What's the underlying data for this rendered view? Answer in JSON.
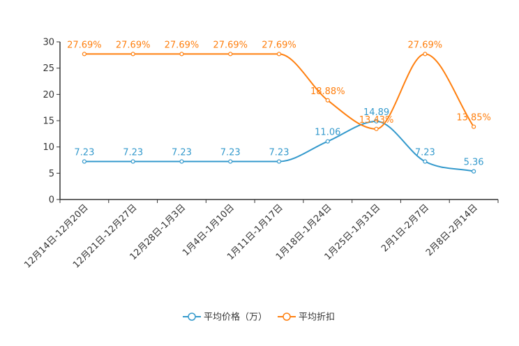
{
  "chart_data": {
    "type": "line",
    "title": "",
    "xlabel": "",
    "ylabel": "",
    "ylim": [
      0,
      30
    ],
    "yticks": [
      0,
      5,
      10,
      15,
      20,
      25,
      30
    ],
    "ytick_labels": [
      "0",
      "5",
      "10",
      "15",
      "20",
      "25",
      "30"
    ],
    "grid": false,
    "legend_position": "bottom-center",
    "categories": [
      "12月14日-12月20日",
      "12月21日-12月27日",
      "12月28日-1月3日",
      "1月4日-1月10日",
      "1月11日-1月17日",
      "1月18日-1月24日",
      "1月25日-1月31日",
      "2月1日-2月7日",
      "2月8日-2月14日"
    ],
    "series": [
      {
        "name": "平均价格（万）",
        "color": "#3399cc",
        "values": [
          7.23,
          7.23,
          7.23,
          7.23,
          7.23,
          11.06,
          14.89,
          7.23,
          5.36
        ],
        "labels": [
          "7.23",
          "7.23",
          "7.23",
          "7.23",
          "7.23",
          "11.06",
          "14.89",
          "7.23",
          "5.36"
        ]
      },
      {
        "name": "平均折扣",
        "color": "#ff7f0e",
        "values": [
          27.69,
          27.69,
          27.69,
          27.69,
          27.69,
          18.88,
          13.43,
          27.69,
          13.85
        ],
        "labels": [
          "27.69%",
          "27.69%",
          "27.69%",
          "27.69%",
          "27.69%",
          "18.88%",
          "13.43%",
          "27.69%",
          "13.85%"
        ]
      }
    ]
  }
}
